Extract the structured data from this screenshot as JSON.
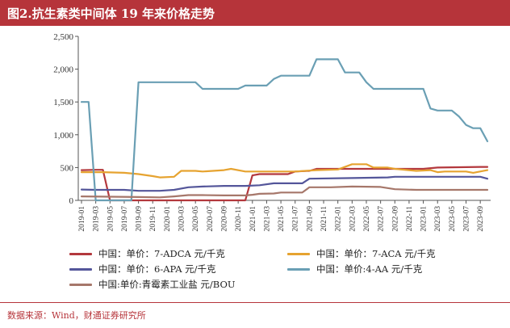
{
  "title": "图2.抗生素类中间体 19 年来价格走势",
  "source": "数据来源：Wind，财通证券研究所",
  "colors": {
    "title_bg": "#b6343a",
    "adca": "#b3383d",
    "aca": "#e6a330",
    "apa": "#54569a",
    "aa4": "#6a9fb4",
    "qinghaosu": "#a6776a",
    "axis": "#555555"
  },
  "chart_data": {
    "type": "line",
    "title": "图2.抗生素类中间体 19 年来价格走势",
    "xlabel": "",
    "ylabel": "",
    "ylim": [
      0,
      2500
    ],
    "yticks": [
      "0",
      "500",
      "1,000",
      "1,500",
      "2,000",
      "2,500"
    ],
    "ytick_values": [
      0,
      500,
      1000,
      1500,
      2000,
      2500
    ],
    "grid": false,
    "legend_position": "bottom",
    "x_start": "2019-01",
    "x_end": "2023-10",
    "x_ticks": [
      "2019-01",
      "2019-03",
      "2019-05",
      "2019-07",
      "2019-09",
      "2019-11",
      "2020-01",
      "2020-03",
      "2020-05",
      "2020-07",
      "2020-09",
      "2020-11",
      "2021-01",
      "2021-03",
      "2021-05",
      "2021-07",
      "2021-09",
      "2021-11",
      "2022-01",
      "2022-03",
      "2022-05",
      "2022-07",
      "2022-09",
      "2022-11",
      "2023-01",
      "2023-03",
      "2023-05",
      "2023-07",
      "2023-09"
    ],
    "series": [
      {
        "name": "中国：单价：7-ADCA 元/千克",
        "color": "#b3383d",
        "points": [
          [
            "2019-01",
            460
          ],
          [
            "2019-03",
            465
          ],
          [
            "2019-04",
            465
          ],
          [
            "2019-05",
            0
          ],
          [
            "2020-12",
            0
          ],
          [
            "2021-01",
            380
          ],
          [
            "2021-02",
            400
          ],
          [
            "2021-06",
            400
          ],
          [
            "2021-07",
            440
          ],
          [
            "2021-09",
            450
          ],
          [
            "2021-10",
            480
          ],
          [
            "2022-03",
            480
          ],
          [
            "2023-01",
            480
          ],
          [
            "2023-03",
            500
          ],
          [
            "2023-09",
            510
          ],
          [
            "2023-10",
            510
          ]
        ]
      },
      {
        "name": "中国：单价：7-ACA 元/千克",
        "color": "#e6a330",
        "points": [
          [
            "2019-01",
            430
          ],
          [
            "2019-02",
            430
          ],
          [
            "2019-04",
            430
          ],
          [
            "2019-07",
            420
          ],
          [
            "2019-09",
            400
          ],
          [
            "2019-11",
            370
          ],
          [
            "2019-12",
            350
          ],
          [
            "2020-02",
            360
          ],
          [
            "2020-03",
            450
          ],
          [
            "2020-05",
            450
          ],
          [
            "2020-06",
            440
          ],
          [
            "2020-09",
            460
          ],
          [
            "2020-10",
            480
          ],
          [
            "2020-12",
            440
          ],
          [
            "2021-05",
            440
          ],
          [
            "2021-07",
            440
          ],
          [
            "2021-10",
            460
          ],
          [
            "2022-01",
            470
          ],
          [
            "2022-03",
            550
          ],
          [
            "2022-05",
            550
          ],
          [
            "2022-06",
            500
          ],
          [
            "2022-08",
            500
          ],
          [
            "2022-09",
            480
          ],
          [
            "2022-12",
            450
          ],
          [
            "2023-02",
            460
          ],
          [
            "2023-03",
            430
          ],
          [
            "2023-04",
            440
          ],
          [
            "2023-07",
            440
          ],
          [
            "2023-08",
            420
          ],
          [
            "2023-10",
            460
          ]
        ]
      },
      {
        "name": "中国：单价：6-APA 元/千克",
        "color": "#54569a",
        "points": [
          [
            "2019-01",
            165
          ],
          [
            "2019-03",
            160
          ],
          [
            "2019-07",
            160
          ],
          [
            "2019-09",
            145
          ],
          [
            "2019-12",
            145
          ],
          [
            "2020-02",
            160
          ],
          [
            "2020-04",
            200
          ],
          [
            "2020-06",
            210
          ],
          [
            "2020-09",
            220
          ],
          [
            "2020-12",
            220
          ],
          [
            "2021-02",
            230
          ],
          [
            "2021-04",
            260
          ],
          [
            "2021-08",
            260
          ],
          [
            "2021-09",
            330
          ],
          [
            "2022-03",
            340
          ],
          [
            "2022-08",
            350
          ],
          [
            "2022-09",
            360
          ],
          [
            "2023-04",
            360
          ],
          [
            "2023-08",
            360
          ],
          [
            "2023-09",
            360
          ],
          [
            "2023-10",
            330
          ]
        ]
      },
      {
        "name": "中国：单价:4-AA 元/千克",
        "color": "#6a9fb4",
        "points": [
          [
            "2019-01",
            1500
          ],
          [
            "2019-02",
            1500
          ],
          [
            "2019-03",
            0
          ],
          [
            "2019-08",
            0
          ],
          [
            "2019-09",
            1800
          ],
          [
            "2020-05",
            1800
          ],
          [
            "2020-06",
            1700
          ],
          [
            "2020-11",
            1700
          ],
          [
            "2020-12",
            1750
          ],
          [
            "2021-03",
            1750
          ],
          [
            "2021-04",
            1850
          ],
          [
            "2021-05",
            1900
          ],
          [
            "2021-09",
            1900
          ],
          [
            "2021-10",
            2150
          ],
          [
            "2022-01",
            2150
          ],
          [
            "2022-02",
            1950
          ],
          [
            "2022-04",
            1950
          ],
          [
            "2022-05",
            1800
          ],
          [
            "2022-06",
            1700
          ],
          [
            "2022-12",
            1700
          ],
          [
            "2023-01",
            1700
          ],
          [
            "2023-02",
            1400
          ],
          [
            "2023-03",
            1370
          ],
          [
            "2023-05",
            1370
          ],
          [
            "2023-06",
            1280
          ],
          [
            "2023-07",
            1150
          ],
          [
            "2023-08",
            1100
          ],
          [
            "2023-09",
            1100
          ],
          [
            "2023-10",
            900
          ]
        ]
      },
      {
        "name": "中国:单价:青霉素工业盐 元/BOU",
        "color": "#a6776a",
        "points": [
          [
            "2019-01",
            60
          ],
          [
            "2019-05",
            55
          ],
          [
            "2019-09",
            50
          ],
          [
            "2019-12",
            45
          ],
          [
            "2020-02",
            60
          ],
          [
            "2020-04",
            80
          ],
          [
            "2020-06",
            80
          ],
          [
            "2020-09",
            75
          ],
          [
            "2020-12",
            75
          ],
          [
            "2021-01",
            85
          ],
          [
            "2021-02",
            100
          ],
          [
            "2021-04",
            105
          ],
          [
            "2021-05",
            120
          ],
          [
            "2021-08",
            120
          ],
          [
            "2021-09",
            200
          ],
          [
            "2021-12",
            200
          ],
          [
            "2022-03",
            210
          ],
          [
            "2022-07",
            205
          ],
          [
            "2022-09",
            170
          ],
          [
            "2022-12",
            160
          ],
          [
            "2023-03",
            160
          ],
          [
            "2023-08",
            160
          ],
          [
            "2023-10",
            160
          ]
        ]
      }
    ]
  }
}
